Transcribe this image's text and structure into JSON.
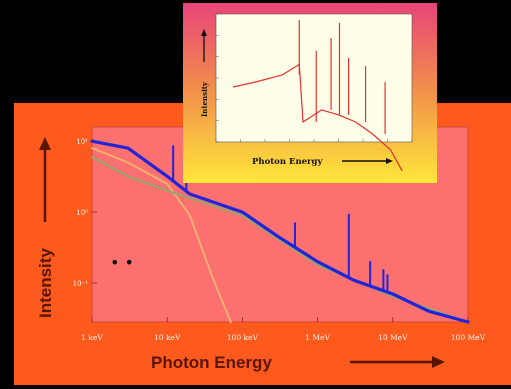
{
  "chart_data": [
    {
      "type": "line",
      "title": "",
      "xlabel": "Photon Energy",
      "ylabel": "Intensity",
      "x_scale": "log",
      "y_scale": "log",
      "xlim": [
        "1 keV",
        "100 MeV"
      ],
      "x_ticks": [
        "1 keV",
        "10 keV",
        "100 keV",
        "1 MeV",
        "10 MeV",
        "100 MeV"
      ],
      "y_ticks": [
        "10¹",
        "10⁰",
        "10⁻¹"
      ],
      "grid": false,
      "legend": "none",
      "series": [
        {
          "color": "#2323d8",
          "x": [
            "1 keV",
            "3 keV",
            "10 keV",
            "20 keV",
            "100 keV",
            "300 keV",
            "1 MeV",
            "3 MeV",
            "10 MeV",
            "30 MeV",
            "100 MeV"
          ],
          "y": [
            10.0,
            8.0,
            3.2,
            1.8,
            1.0,
            0.45,
            0.2,
            0.11,
            0.07,
            0.04,
            0.02
          ]
        },
        {
          "color": "#8fa870",
          "x": [
            "1 keV",
            "3 keV",
            "10 keV",
            "100 keV",
            "1 MeV",
            "10 MeV",
            "100 MeV"
          ],
          "y": [
            6.0,
            3.2,
            2.0,
            0.9,
            0.18,
            0.065,
            0.02
          ]
        },
        {
          "color": "#f0b070",
          "x": [
            "1 keV",
            "3 keV",
            "10 keV",
            "20 keV",
            "40 keV",
            "70 keV"
          ],
          "y": [
            8.0,
            5.0,
            2.5,
            0.9,
            0.12,
            0.01
          ]
        }
      ]
    },
    {
      "type": "line",
      "title": "",
      "xlabel": "Photon Energy",
      "ylabel": "Intensity",
      "x_scale": "log",
      "y_scale": "log",
      "legend": "none",
      "series": [
        {
          "color": "#e53030",
          "x": [
            "100 keV",
            "300 keV",
            "1 MeV",
            "3 MeV",
            "10 MeV",
            "30 MeV"
          ],
          "y": [
            0.8,
            1.0,
            0.35,
            0.22,
            0.15,
            0.05
          ]
        }
      ]
    }
  ],
  "decor": {
    "dots": "• •"
  }
}
